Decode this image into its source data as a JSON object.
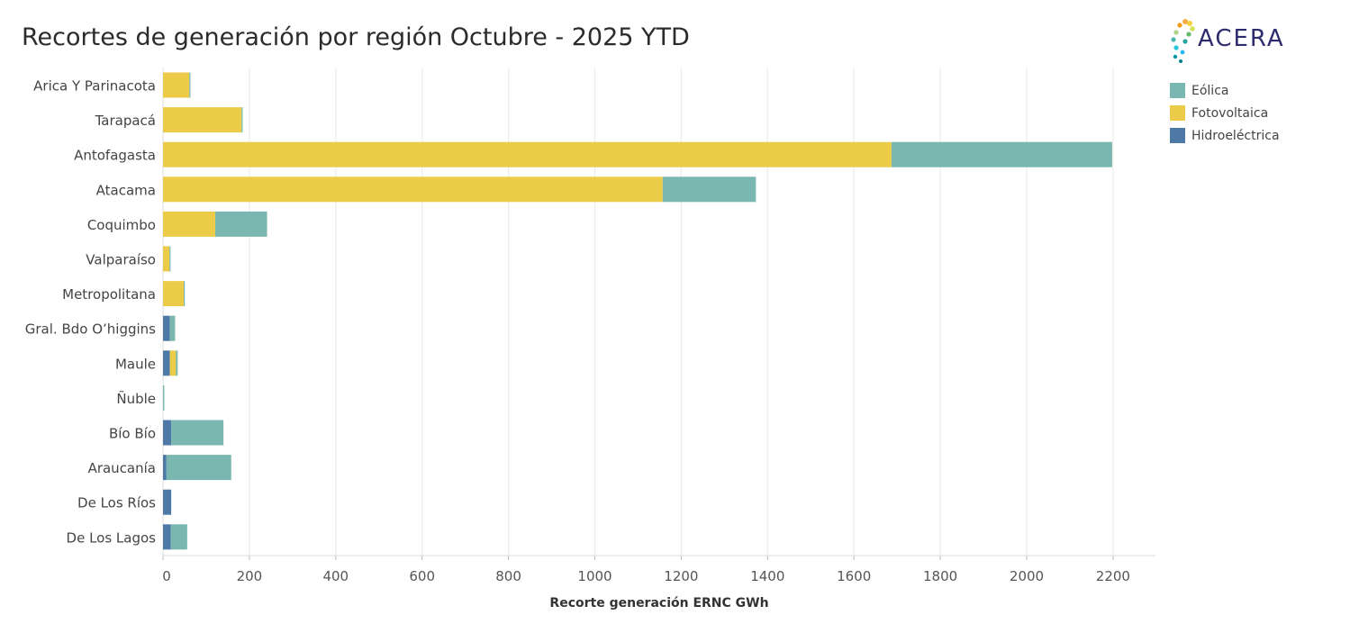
{
  "title": "Recortes de generación por región Octubre - 2025 YTD",
  "logo": {
    "text": "ACERA"
  },
  "legend": [
    {
      "label": "Eólica",
      "color": "#79b7b0"
    },
    {
      "label": "Fotovoltaica",
      "color": "#eccb48"
    },
    {
      "label": "Hidroeléctrica",
      "color": "#4e79a7"
    }
  ],
  "chart_data": {
    "type": "bar",
    "orientation": "horizontal",
    "stacked": true,
    "xlabel": "Recorte generación ERNC GWh",
    "ylabel": "",
    "xlim": [
      0,
      2300
    ],
    "xticks": [
      0,
      200,
      400,
      600,
      800,
      1000,
      1200,
      1400,
      1600,
      1800,
      2000,
      2200
    ],
    "grid": "vertical",
    "legend_position": "top-right",
    "categories": [
      "Arica Y Parinacota",
      "Tarapacá",
      "Antofagasta",
      "Atacama",
      "Coquimbo",
      "Valparaíso",
      "Metropolitana",
      "Gral. Bdo O’higgins",
      "Maule",
      "Ñuble",
      "Bío Bío",
      "Araucanía",
      "De Los Ríos",
      "De Los Lagos"
    ],
    "series": [
      {
        "name": "Hidroeléctrica",
        "color": "#4e79a7",
        "values": [
          0,
          0,
          0,
          0,
          0,
          0,
          0,
          16,
          16,
          0,
          19,
          8,
          19,
          18
        ]
      },
      {
        "name": "Fotovoltaica",
        "color": "#eccb48",
        "values": [
          61,
          182,
          1687,
          1157,
          121,
          15,
          48,
          0,
          14,
          0,
          0,
          0,
          0,
          0
        ]
      },
      {
        "name": "Eólica",
        "color": "#79b7b0",
        "values": [
          1,
          2,
          511,
          216,
          120,
          1,
          1,
          12,
          4,
          3,
          121,
          150,
          0,
          38
        ]
      }
    ]
  }
}
